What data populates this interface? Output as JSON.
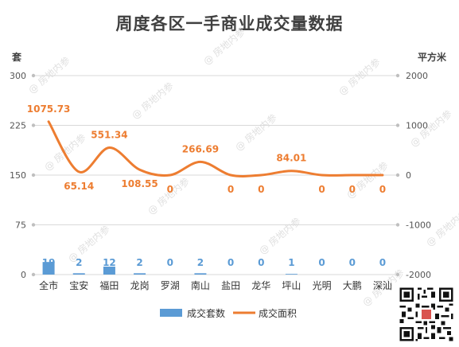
{
  "chart_data": {
    "type": "bar+line",
    "title": "周度各区一手商业成交量数据",
    "y_left_label": "套",
    "y_right_label": "平方米",
    "y_left_ticks": [
      "300",
      "225",
      "150",
      "75",
      "0"
    ],
    "y_right_ticks": [
      "2000",
      "1000",
      "0",
      "-1000",
      "-2000"
    ],
    "y_left_range": [
      0,
      300
    ],
    "y_right_range": [
      -2000,
      2000
    ],
    "categories": [
      "全市",
      "宝安",
      "福田",
      "龙岗",
      "罗湖",
      "南山",
      "盐田",
      "龙华",
      "坪山",
      "光明",
      "大鹏",
      "深汕"
    ],
    "series": [
      {
        "name": "成交套数",
        "type": "bar",
        "axis": "left",
        "color": "#5b9bd5",
        "values": [
          19,
          2,
          12,
          2,
          0,
          2,
          0,
          0,
          1,
          0,
          0,
          0
        ],
        "labels": [
          "19",
          "2",
          "12",
          "2",
          "0",
          "2",
          "0",
          "0",
          "1",
          "0",
          "0",
          "0"
        ]
      },
      {
        "name": "成交面积",
        "type": "line",
        "axis": "right",
        "color": "#ed7d31",
        "values": [
          1075.73,
          65.14,
          551.34,
          108.55,
          0,
          266.69,
          0,
          0,
          84.01,
          0,
          0,
          0
        ],
        "labels": [
          "1075.73",
          "65.14",
          "551.34",
          "108.55",
          "0",
          "266.69",
          "0",
          "0",
          "84.01",
          "0",
          "0",
          "0"
        ]
      }
    ],
    "legend_position": "bottom",
    "grid": true
  },
  "watermark": "@ 房地内参",
  "qr_icon": "qr-code-icon"
}
